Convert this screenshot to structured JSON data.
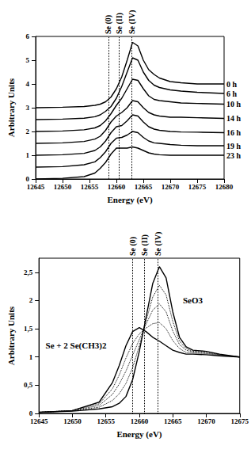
{
  "chart_data": [
    {
      "type": "line",
      "x_label": "Energy (eV)",
      "y_label": "Arbitrary Units",
      "color": "#000000",
      "line_style": "solid",
      "marker": "none",
      "grid": false,
      "xlim": [
        12645,
        12680
      ],
      "xticks": [
        12645,
        12650,
        12655,
        12660,
        12665,
        12670,
        12675,
        12680
      ],
      "ylim": [
        0,
        6
      ],
      "yticks": [
        0,
        1,
        2,
        3,
        4,
        5,
        6
      ],
      "reference_lines": [
        {
          "x": 12658.5,
          "label": "Se (0)"
        },
        {
          "x": 12660.5,
          "label": "Se (II)"
        },
        {
          "x": 12662.8,
          "label": "Se (IV)"
        }
      ],
      "x": [
        12645,
        12650,
        12654,
        12656,
        12657,
        12658,
        12659,
        12660,
        12661,
        12662,
        12663,
        12664,
        12665,
        12666,
        12667,
        12668,
        12670,
        12672,
        12675,
        12680
      ],
      "series": [
        {
          "name": "0 h",
          "values": [
            3.0,
            3.02,
            3.05,
            3.1,
            3.15,
            3.25,
            3.45,
            3.8,
            4.3,
            5.0,
            5.75,
            5.6,
            5.0,
            4.6,
            4.4,
            4.25,
            4.1,
            4.05,
            4.0,
            4.0
          ]
        },
        {
          "name": "6 h",
          "values": [
            2.5,
            2.52,
            2.56,
            2.62,
            2.7,
            2.85,
            3.05,
            3.4,
            3.9,
            4.5,
            5.1,
            5.0,
            4.5,
            4.15,
            3.95,
            3.85,
            3.75,
            3.7,
            3.65,
            3.6
          ]
        },
        {
          "name": "10 h",
          "values": [
            2.0,
            2.02,
            2.07,
            2.15,
            2.25,
            2.45,
            2.75,
            3.1,
            3.4,
            3.8,
            4.2,
            4.15,
            3.8,
            3.5,
            3.35,
            3.3,
            3.25,
            3.2,
            3.18,
            3.15
          ]
        },
        {
          "name": "14 h",
          "values": [
            1.5,
            1.52,
            1.58,
            1.68,
            1.8,
            2.05,
            2.4,
            2.65,
            2.8,
            3.0,
            3.3,
            3.25,
            3.0,
            2.8,
            2.7,
            2.65,
            2.6,
            2.6,
            2.58,
            2.55
          ]
        },
        {
          "name": "16 h",
          "values": [
            1.0,
            1.02,
            1.08,
            1.2,
            1.35,
            1.6,
            1.95,
            2.2,
            2.25,
            2.45,
            2.7,
            2.65,
            2.4,
            2.2,
            2.1,
            2.05,
            2.0,
            1.98,
            1.97,
            1.95
          ]
        },
        {
          "name": "19 h",
          "values": [
            0.5,
            0.52,
            0.6,
            0.72,
            0.9,
            1.15,
            1.5,
            1.72,
            1.75,
            1.85,
            2.0,
            1.95,
            1.75,
            1.6,
            1.52,
            1.5,
            1.45,
            1.42,
            1.4,
            1.4
          ]
        },
        {
          "name": "23 h",
          "values": [
            0.0,
            0.03,
            0.1,
            0.25,
            0.45,
            0.7,
            1.05,
            1.3,
            1.3,
            1.3,
            1.35,
            1.3,
            1.2,
            1.1,
            1.05,
            1.02,
            1.0,
            1.0,
            1.0,
            1.0
          ]
        }
      ]
    },
    {
      "type": "line",
      "x_label": "Energy (eV)",
      "y_label": "Arbitrary Units",
      "color": "#000000",
      "marker": "none",
      "grid": false,
      "xlim": [
        12645,
        12675
      ],
      "xticks": [
        12645,
        12650,
        12655,
        12660,
        12665,
        12670,
        12675
      ],
      "ylim": [
        0,
        2.75
      ],
      "yticks": [
        0,
        {
          "value": 0.5,
          "label": "0,5"
        },
        1,
        {
          "value": 1.5,
          "label": "1,5"
        },
        2,
        {
          "value": 2.5,
          "label": "2,5"
        }
      ],
      "reference_lines": [
        {
          "x": 12659,
          "label": "Se (0)"
        },
        {
          "x": 12660.8,
          "label": "Se (II)"
        },
        {
          "x": 12662.8,
          "label": "Se (IV)"
        }
      ],
      "annotations": [
        {
          "text": "SeO3",
          "x": 12666.5,
          "y": 2.0
        },
        {
          "text": "Se + 2 Se(CH3)2",
          "x": 12646,
          "y": 1.2
        }
      ],
      "x": [
        12645,
        12650,
        12654,
        12656,
        12657,
        12658,
        12659,
        12660,
        12661,
        12662,
        12663,
        12664,
        12665,
        12666,
        12667,
        12668,
        12670,
        12672,
        12675
      ],
      "series": [
        {
          "line_style": "solid",
          "values": [
            0.02,
            0.04,
            0.08,
            0.12,
            0.18,
            0.3,
            0.6,
            1.1,
            1.7,
            2.3,
            2.6,
            2.4,
            1.8,
            1.35,
            1.18,
            1.12,
            1.1,
            1.05,
            1.0
          ]
        },
        {
          "line_style": "solid",
          "values": [
            0.02,
            0.05,
            0.2,
            0.55,
            0.85,
            1.2,
            1.45,
            1.52,
            1.45,
            1.35,
            1.28,
            1.2,
            1.12,
            1.08,
            1.05,
            1.05,
            1.04,
            1.02,
            1.0
          ]
        },
        {
          "line_style": "dotted",
          "values": [
            0.02,
            0.05,
            0.11,
            0.23,
            0.35,
            0.53,
            0.81,
            1.2,
            1.64,
            2.06,
            2.27,
            2.1,
            1.63,
            1.28,
            1.15,
            1.1,
            1.09,
            1.04,
            1.0
          ]
        },
        {
          "line_style": "dotted",
          "values": [
            0.02,
            0.05,
            0.14,
            0.34,
            0.52,
            0.75,
            1.03,
            1.31,
            1.58,
            1.83,
            1.94,
            1.8,
            1.46,
            1.22,
            1.12,
            1.09,
            1.07,
            1.04,
            1.0
          ]
        },
        {
          "line_style": "dotted",
          "values": [
            0.02,
            0.05,
            0.17,
            0.44,
            0.68,
            0.98,
            1.24,
            1.41,
            1.51,
            1.59,
            1.61,
            1.5,
            1.29,
            1.15,
            1.08,
            1.07,
            1.06,
            1.03,
            1.0
          ]
        }
      ]
    }
  ]
}
